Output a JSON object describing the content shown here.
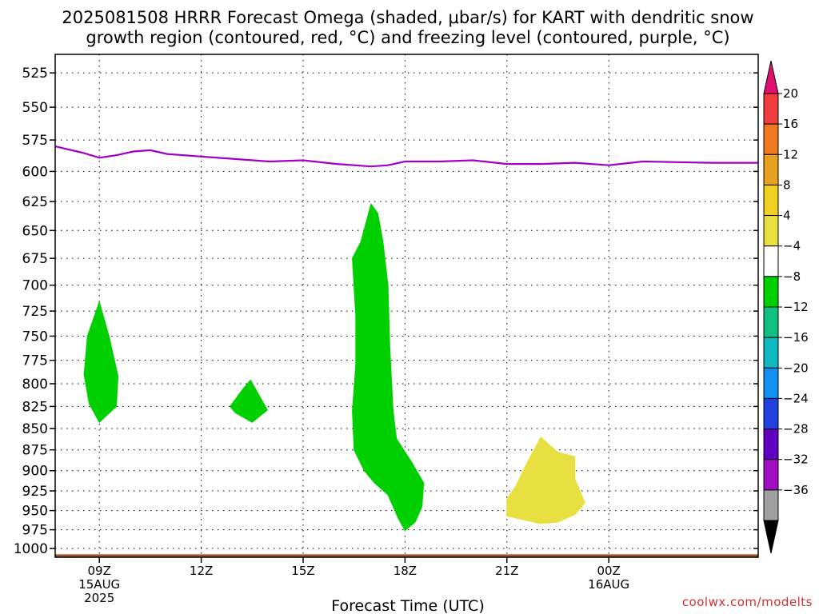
{
  "chart_data": {
    "type": "heatmap",
    "title_lines": [
      "2025081508 HRRR Forecast Omega (shaded, μbar/s) for KART with dendritic snow",
      "growth region (contoured, red, °C) and freezing level (contoured, purple, °C)"
    ],
    "xlabel": "Forecast Time (UTC)",
    "credit": "coolwx.com/modelts",
    "x_unit": "hours after 2025-08-15 08Z",
    "xlim": [
      -0.3,
      20.4
    ],
    "y_scale": "log-pressure (inverted)",
    "ylim_hpa": [
      1012,
      512
    ],
    "y_ticks": [
      525,
      550,
      575,
      600,
      625,
      650,
      675,
      700,
      725,
      750,
      775,
      800,
      825,
      850,
      875,
      900,
      925,
      950,
      975,
      1000
    ],
    "x_ticks": [
      {
        "x": 1,
        "lines": [
          "09Z",
          "15AUG",
          "2025"
        ]
      },
      {
        "x": 4,
        "lines": [
          "12Z"
        ]
      },
      {
        "x": 7,
        "lines": [
          "15Z"
        ]
      },
      {
        "x": 10,
        "lines": [
          "18Z"
        ]
      },
      {
        "x": 13,
        "lines": [
          "21Z"
        ]
      },
      {
        "x": 16,
        "lines": [
          "00Z",
          "16AUG"
        ]
      }
    ],
    "grid": true,
    "colorbar": {
      "position": "right",
      "labels": [
        "20",
        "16",
        "12",
        "8",
        "4",
        "−4",
        "−8",
        "−12",
        "−16",
        "−20",
        "−24",
        "−28",
        "−32",
        "−36"
      ],
      "colors": [
        "#f03c3c",
        "#f07820",
        "#e8a020",
        "#f0d020",
        "#e8e040",
        "#ffffff",
        "#00d000",
        "#10c080",
        "#10b8c0",
        "#1090f0",
        "#2040e0",
        "#6000c0",
        "#a010c0",
        "#a0a0a0"
      ],
      "top_arrow_color": "#e01070",
      "bottom_arrow_color": "#000000"
    },
    "freezing_level": {
      "color": "#a000c8",
      "points": [
        [
          -0.3,
          580
        ],
        [
          0.5,
          585
        ],
        [
          1.0,
          589
        ],
        [
          1.5,
          587
        ],
        [
          2.0,
          584
        ],
        [
          2.5,
          583
        ],
        [
          3.0,
          586
        ],
        [
          4.0,
          588
        ],
        [
          5.0,
          590
        ],
        [
          6.0,
          592
        ],
        [
          7.0,
          591
        ],
        [
          8.0,
          594
        ],
        [
          9.0,
          596
        ],
        [
          9.5,
          595
        ],
        [
          10.0,
          592
        ],
        [
          11.0,
          592
        ],
        [
          12.0,
          591
        ],
        [
          13.0,
          594
        ],
        [
          14.0,
          594
        ],
        [
          15.0,
          593
        ],
        [
          16.0,
          595
        ],
        [
          17.0,
          592
        ],
        [
          18.0,
          592.5
        ],
        [
          19.0,
          593
        ],
        [
          20.4,
          593
        ]
      ]
    },
    "omega_regions": [
      {
        "color": "#00d000",
        "points": [
          [
            1.0,
            716
          ],
          [
            1.3,
            752
          ],
          [
            1.55,
            792
          ],
          [
            1.5,
            825
          ],
          [
            1.0,
            843
          ],
          [
            0.7,
            822
          ],
          [
            0.55,
            790
          ],
          [
            0.65,
            750
          ]
        ]
      },
      {
        "color": "#00d000",
        "points": [
          [
            4.85,
            825
          ],
          [
            5.2,
            807
          ],
          [
            5.45,
            796
          ],
          [
            5.95,
            829
          ],
          [
            5.5,
            843
          ],
          [
            5.0,
            832
          ]
        ]
      },
      {
        "color": "#00d000",
        "points": [
          [
            9.0,
            627
          ],
          [
            8.7,
            660
          ],
          [
            8.45,
            675
          ],
          [
            8.55,
            730
          ],
          [
            8.55,
            780
          ],
          [
            8.45,
            830
          ],
          [
            8.5,
            875
          ],
          [
            8.8,
            900
          ],
          [
            9.1,
            915
          ],
          [
            9.5,
            930
          ],
          [
            9.8,
            960
          ],
          [
            10.0,
            976
          ],
          [
            10.3,
            965
          ],
          [
            10.5,
            945
          ],
          [
            10.55,
            915
          ],
          [
            10.2,
            890
          ],
          [
            9.75,
            862
          ],
          [
            9.65,
            830
          ],
          [
            9.55,
            760
          ],
          [
            9.5,
            700
          ],
          [
            9.35,
            660
          ],
          [
            9.2,
            635
          ]
        ]
      },
      {
        "color": "#e8e040",
        "points": [
          [
            13.0,
            935
          ],
          [
            13.25,
            920
          ],
          [
            13.6,
            890
          ],
          [
            14.0,
            860
          ],
          [
            14.5,
            878
          ],
          [
            15.0,
            883
          ],
          [
            15.0,
            910
          ],
          [
            15.3,
            940
          ],
          [
            15.0,
            955
          ],
          [
            14.5,
            965
          ],
          [
            14.0,
            967
          ],
          [
            13.5,
            962
          ],
          [
            13.0,
            957
          ]
        ]
      }
    ],
    "ground": {
      "color": "#a0522d",
      "top_hpa": 1008
    }
  }
}
